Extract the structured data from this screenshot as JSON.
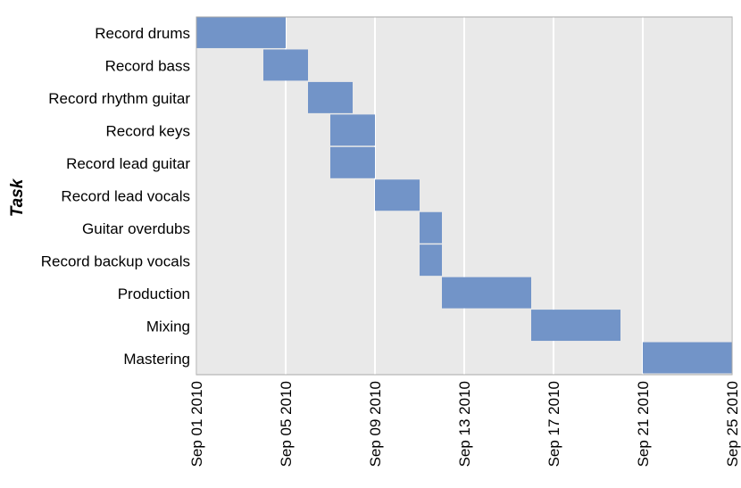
{
  "chart_data": {
    "type": "gantt",
    "title": "",
    "xlabel": "",
    "ylabel": "Task",
    "xlim": [
      "2010-09-01",
      "2010-09-25"
    ],
    "grid": true,
    "x_ticks": [
      "Sep 01 2010",
      "Sep 05 2010",
      "Sep 09 2010",
      "Sep 13 2010",
      "Sep 17 2010",
      "Sep 21 2010",
      "Sep 25 2010"
    ],
    "tasks": [
      {
        "label": "Record drums",
        "start": "2010-09-01",
        "end": "2010-09-05"
      },
      {
        "label": "Record bass",
        "start": "2010-09-04",
        "end": "2010-09-06"
      },
      {
        "label": "Record rhythm guitar",
        "start": "2010-09-06",
        "end": "2010-09-08"
      },
      {
        "label": "Record keys",
        "start": "2010-09-07",
        "end": "2010-09-09"
      },
      {
        "label": "Record lead guitar",
        "start": "2010-09-07",
        "end": "2010-09-09"
      },
      {
        "label": "Record lead vocals",
        "start": "2010-09-09",
        "end": "2010-09-11"
      },
      {
        "label": "Guitar overdubs",
        "start": "2010-09-11",
        "end": "2010-09-12"
      },
      {
        "label": "Record backup vocals",
        "start": "2010-09-11",
        "end": "2010-09-12"
      },
      {
        "label": "Production",
        "start": "2010-09-12",
        "end": "2010-09-16"
      },
      {
        "label": "Mixing",
        "start": "2010-09-16",
        "end": "2010-09-20"
      },
      {
        "label": "Mastering",
        "start": "2010-09-21",
        "end": "2010-09-25"
      }
    ],
    "colors": {
      "bar": "#7294c8",
      "plot_bg": "#e9e9e9",
      "grid": "#ffffff",
      "frame": "#a8a8a8"
    }
  }
}
